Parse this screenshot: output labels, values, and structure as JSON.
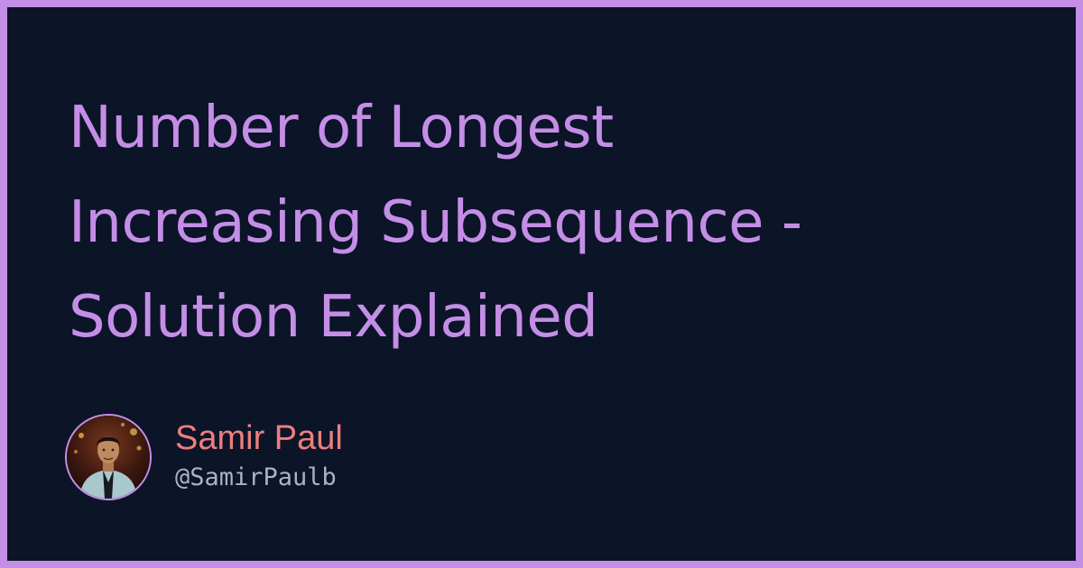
{
  "title": {
    "lines": [
      "Number of Longest",
      "Increasing Subsequence -",
      "Solution Explained"
    ]
  },
  "author": {
    "name": "Samir Paul",
    "handle": "@SamirPaulb"
  },
  "colors": {
    "background": "#0c1428",
    "accent": "#c48ee6",
    "author_name": "#ee7e7e",
    "handle": "#aab2c8"
  }
}
